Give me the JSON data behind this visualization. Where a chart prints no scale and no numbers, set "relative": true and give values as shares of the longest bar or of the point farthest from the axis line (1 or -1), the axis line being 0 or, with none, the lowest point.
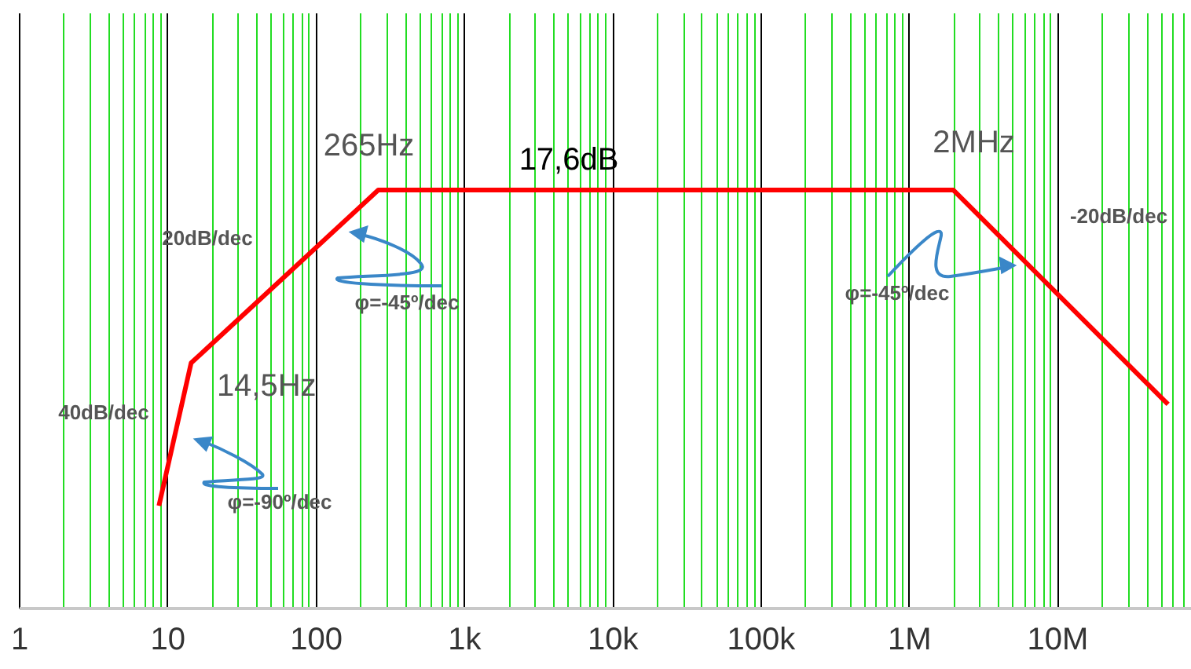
{
  "chart_data": {
    "type": "line",
    "relative": true,
    "log": "x",
    "grid": "x",
    "marker": "none",
    "line_style": "solid",
    "x": [
      8.8,
      14.5,
      265,
      2000000,
      56000000
    ],
    "series": [
      {
        "color": "#ff0000",
        "values": [
          0.244,
          0.586,
          1,
          1,
          0.487
        ]
      }
    ],
    "xlim": [
      1,
      80000000
    ],
    "xticks": [
      1,
      {
        "value": 2,
        "label": null
      },
      {
        "value": 3,
        "label": null
      },
      {
        "value": 4,
        "label": null
      },
      {
        "value": 5,
        "label": null
      },
      {
        "value": 6,
        "label": null
      },
      {
        "value": 7,
        "label": null
      },
      {
        "value": 8,
        "label": null
      },
      {
        "value": 9,
        "label": null
      },
      10,
      {
        "value": 20,
        "label": null
      },
      {
        "value": 30,
        "label": null
      },
      {
        "value": 40,
        "label": null
      },
      {
        "value": 50,
        "label": null
      },
      {
        "value": 60,
        "label": null
      },
      {
        "value": 70,
        "label": null
      },
      {
        "value": 80,
        "label": null
      },
      {
        "value": 90,
        "label": null
      },
      100,
      {
        "value": 200,
        "label": null
      },
      {
        "value": 300,
        "label": null
      },
      {
        "value": 400,
        "label": null
      },
      {
        "value": 500,
        "label": null
      },
      {
        "value": 600,
        "label": null
      },
      {
        "value": 700,
        "label": null
      },
      {
        "value": 800,
        "label": null
      },
      {
        "value": 900,
        "label": null
      },
      {
        "value": 1000,
        "label": "1k"
      },
      {
        "value": 2000,
        "label": null
      },
      {
        "value": 3000,
        "label": null
      },
      {
        "value": 4000,
        "label": null
      },
      {
        "value": 5000,
        "label": null
      },
      {
        "value": 6000,
        "label": null
      },
      {
        "value": 7000,
        "label": null
      },
      {
        "value": 8000,
        "label": null
      },
      {
        "value": 9000,
        "label": null
      },
      {
        "value": 10000,
        "label": "10k"
      },
      {
        "value": 20000,
        "label": null
      },
      {
        "value": 30000,
        "label": null
      },
      {
        "value": 40000,
        "label": null
      },
      {
        "value": 50000,
        "label": null
      },
      {
        "value": 60000,
        "label": null
      },
      {
        "value": 70000,
        "label": null
      },
      {
        "value": 80000,
        "label": null
      },
      {
        "value": 90000,
        "label": null
      },
      {
        "value": 100000,
        "label": "100k"
      },
      {
        "value": 200000,
        "label": null
      },
      {
        "value": 300000,
        "label": null
      },
      {
        "value": 400000,
        "label": null
      },
      {
        "value": 500000,
        "label": null
      },
      {
        "value": 600000,
        "label": null
      },
      {
        "value": 700000,
        "label": null
      },
      {
        "value": 800000,
        "label": null
      },
      {
        "value": 900000,
        "label": null
      },
      {
        "value": 1000000,
        "label": "1M"
      },
      {
        "value": 2000000,
        "label": null
      },
      {
        "value": 3000000,
        "label": null
      },
      {
        "value": 4000000,
        "label": null
      },
      {
        "value": 5000000,
        "label": null
      },
      {
        "value": 6000000,
        "label": null
      },
      {
        "value": 7000000,
        "label": null
      },
      {
        "value": 8000000,
        "label": null
      },
      {
        "value": 9000000,
        "label": null
      },
      {
        "value": 10000000,
        "label": "10M"
      },
      {
        "value": 20000000,
        "label": null
      },
      {
        "value": 30000000,
        "label": null
      },
      {
        "value": 40000000,
        "label": null
      },
      {
        "value": 50000000,
        "label": null
      },
      {
        "value": 60000000,
        "label": null
      },
      {
        "value": 70000000,
        "label": null
      },
      {
        "value": 80000000,
        "label": null
      }
    ],
    "annotations": [
      {
        "text": "265Hz",
        "x": 265,
        "y": 1
      },
      {
        "text": "14,5Hz",
        "x": 14.5,
        "y": 0.586
      },
      {
        "text": "2MHz",
        "x": 2000000,
        "y": 1
      },
      "17,6dB",
      "20dB/dec",
      "φ=-45º/dec",
      "40dB/dec",
      "φ=-90º/dec",
      "φ=-45º/dec",
      "-20dB/dec"
    ]
  }
}
